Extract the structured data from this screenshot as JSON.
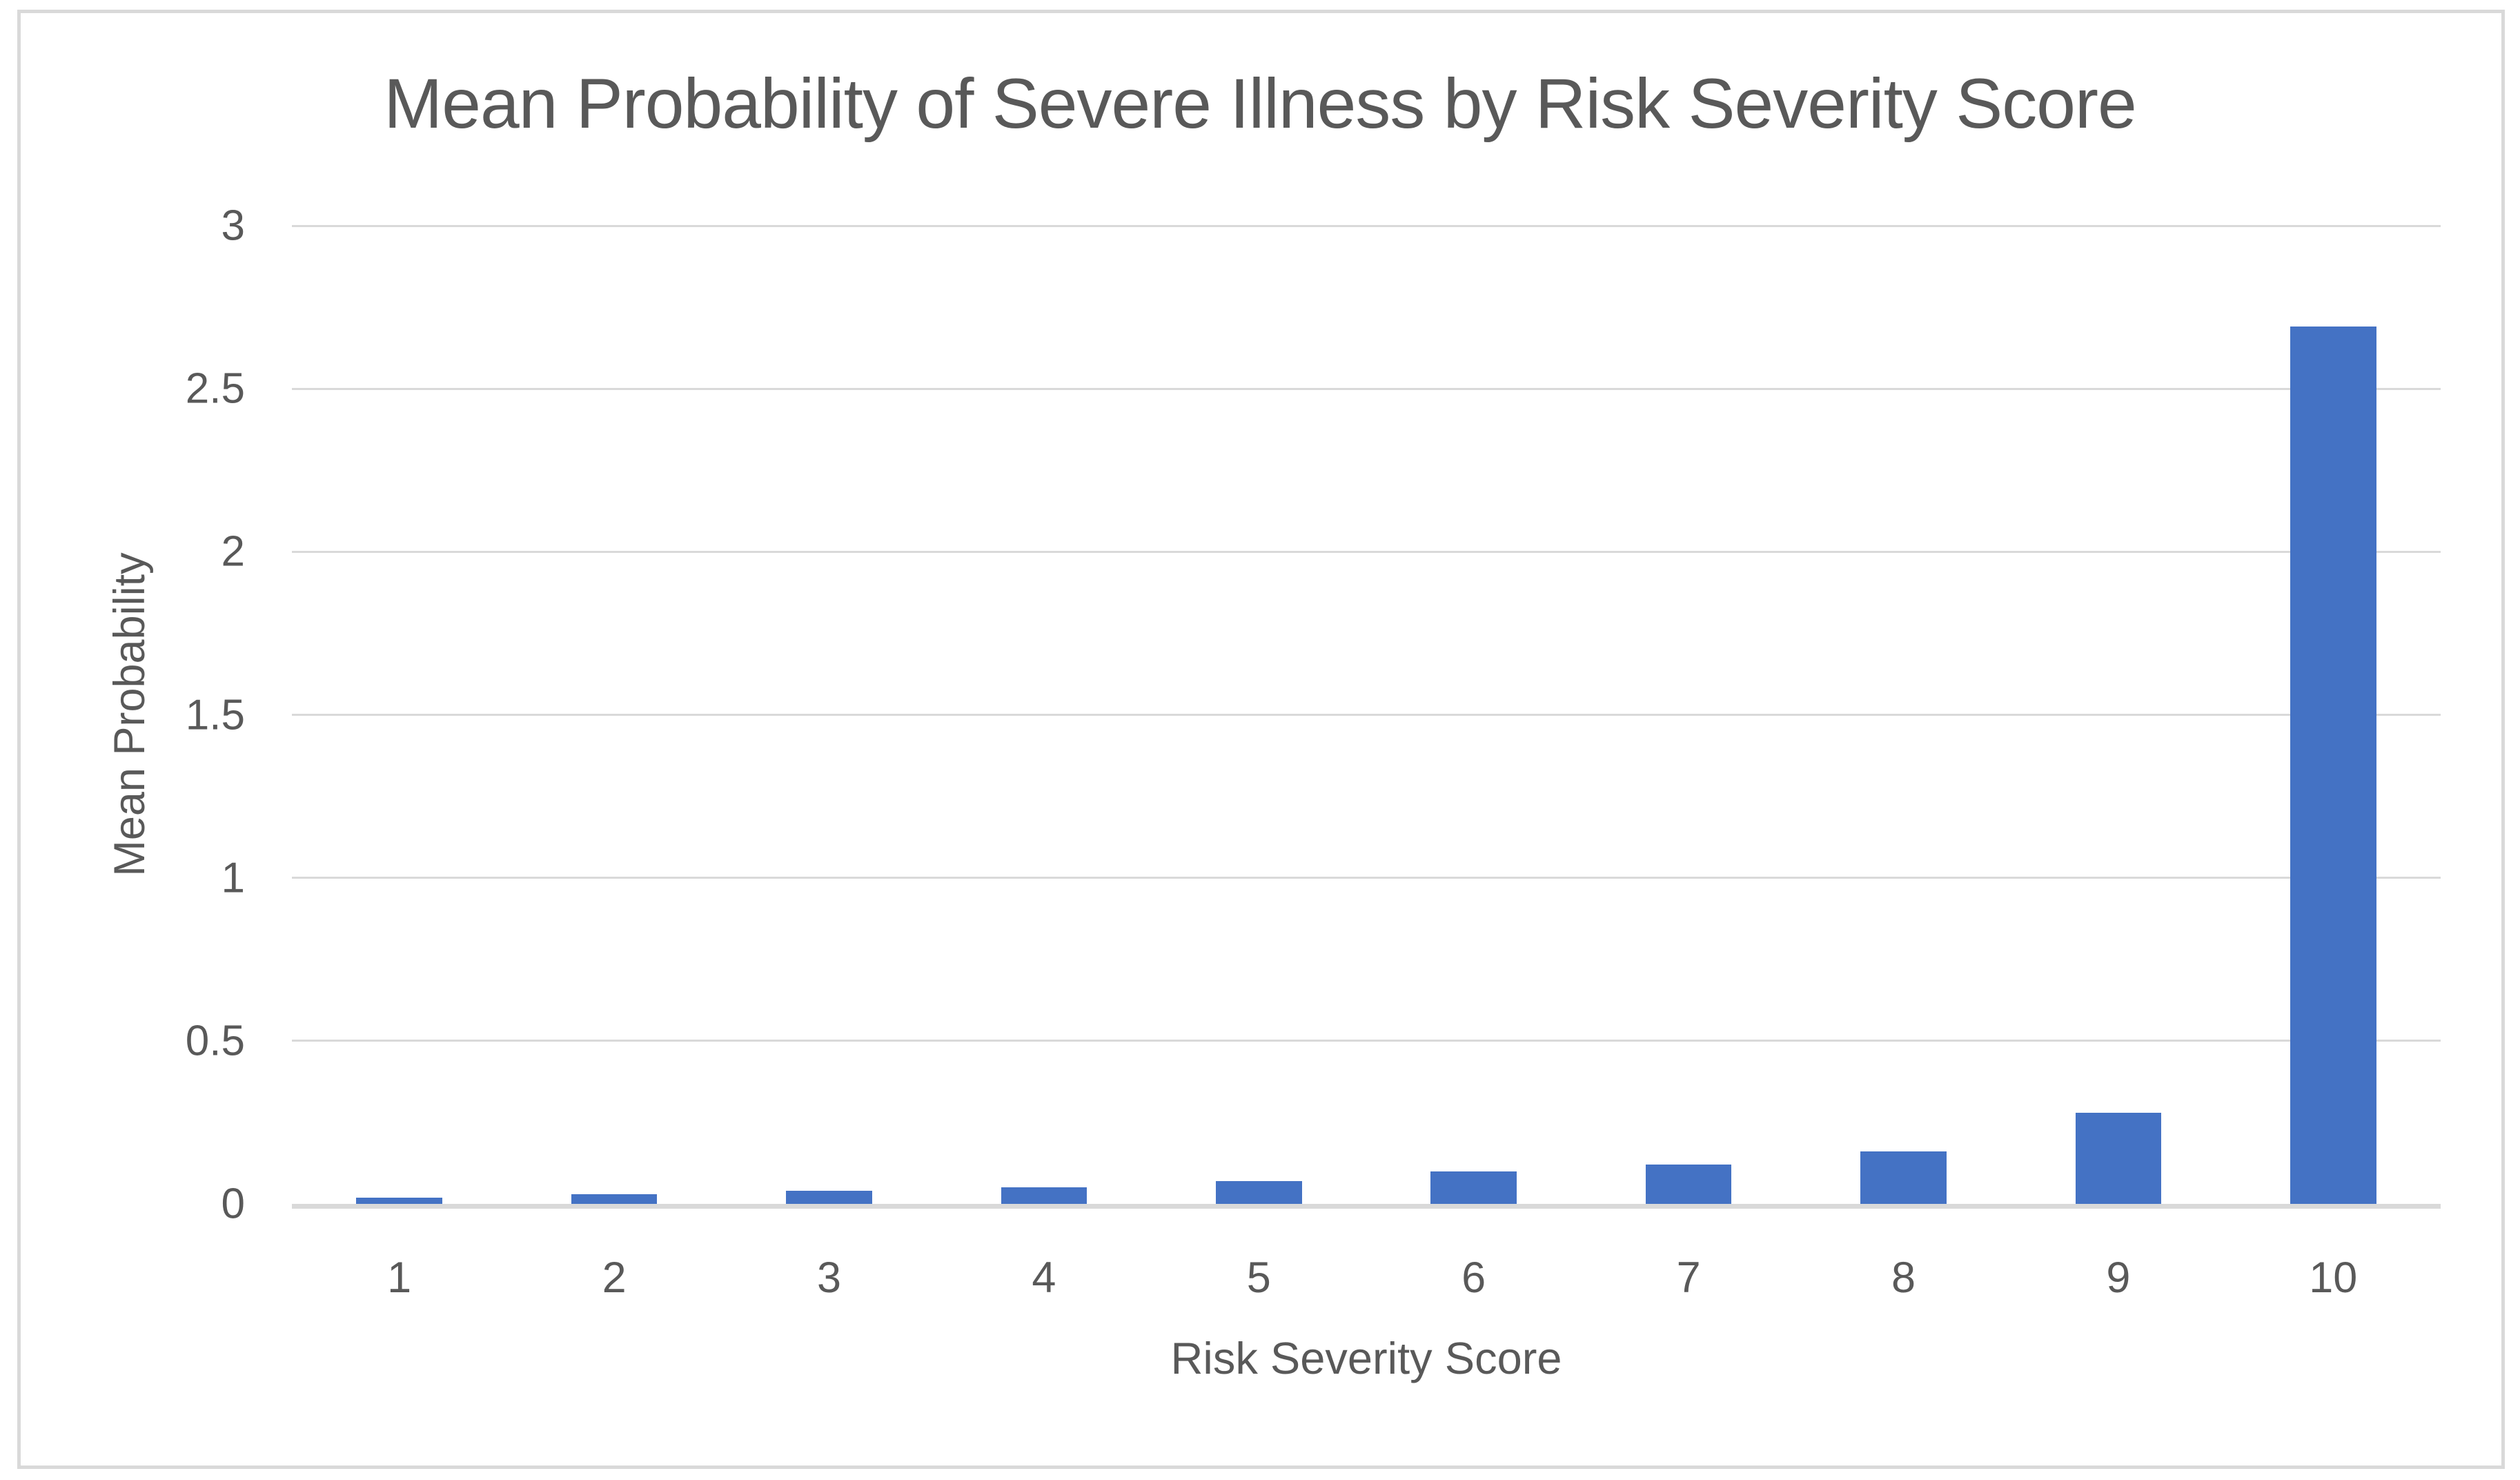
{
  "chart": {
    "title": "Mean Probability of Severe Illness by Risk Severity Score",
    "x_axis_title": "Risk Severity Score",
    "y_axis_title": "Mean Probability"
  },
  "chart_data": {
    "type": "bar",
    "title": "Mean Probability of Severe Illness by Risk Severity Score",
    "xlabel": "Risk Severity Score",
    "ylabel": "Mean Probability",
    "categories": [
      "1",
      "2",
      "3",
      "4",
      "5",
      "6",
      "7",
      "8",
      "9",
      "10"
    ],
    "values": [
      0.02,
      0.03,
      0.04,
      0.05,
      0.07,
      0.1,
      0.12,
      0.16,
      0.28,
      2.69
    ],
    "ylim": [
      0,
      3
    ],
    "yticks": [
      0,
      0.5,
      1,
      1.5,
      2,
      2.5,
      3
    ],
    "ytick_labels": [
      "0",
      "0.5",
      "1",
      "1.5",
      "2",
      "2.5",
      "3"
    ],
    "grid": true,
    "legend": false,
    "bar_gap_fraction": 0.6,
    "colors": {
      "bar": "#4472C4",
      "gridline": "#D9D9D9",
      "axis_line": "#D9D9D9",
      "text": "#595959",
      "frame_border": "#D9D9D9",
      "background": "#FFFFFF"
    }
  }
}
